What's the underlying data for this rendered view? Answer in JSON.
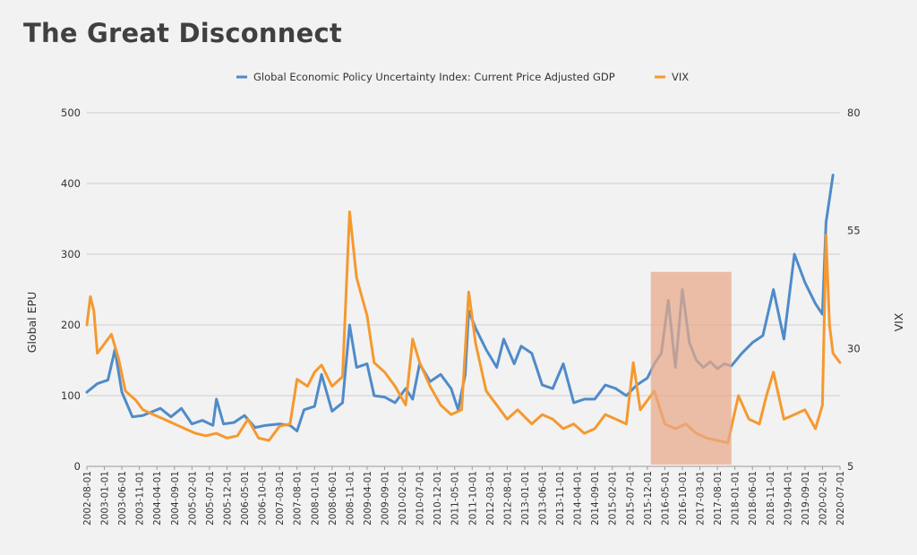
{
  "chart_data": {
    "type": "line",
    "title": "The Great Disconnect",
    "ylabel_left": "Global EPU",
    "ylabel_right": "VIX",
    "ylim_left": [
      0,
      500
    ],
    "ylim_right": [
      5,
      80
    ],
    "yticks_left": [
      "0",
      "100",
      "200",
      "300",
      "400",
      "500"
    ],
    "yticks_right": [
      "5",
      "30",
      "55",
      "80"
    ],
    "xlim": [
      "2002-08-01",
      "2020-07-01"
    ],
    "grid": true,
    "legend_position": "top",
    "x_tick_labels": [
      "2002-08-01",
      "2003-01-01",
      "2003-06-01",
      "2003-11-01",
      "2004-04-01",
      "2004-09-01",
      "2005-02-01",
      "2005-07-01",
      "2005-12-01",
      "2006-05-01",
      "2006-10-01",
      "2007-03-01",
      "2007-08-01",
      "2008-01-01",
      "2008-06-01",
      "2008-11-01",
      "2009-04-01",
      "2009-09-01",
      "2010-02-01",
      "2010-07-01",
      "2010-12-01",
      "2011-05-01",
      "2011-10-01",
      "2012-03-01",
      "2012-08-01",
      "2013-01-01",
      "2013-06-01",
      "2013-11-01",
      "2014-04-01",
      "2014-09-01",
      "2015-02-01",
      "2015-07-01",
      "2015-12-01",
      "2016-05-01",
      "2016-10-01",
      "2017-03-01",
      "2017-08-01",
      "2018-01-01",
      "2018-06-01",
      "2018-11-01",
      "2019-04-01",
      "2019-09-01",
      "2020-02-01",
      "2020-07-01"
    ],
    "highlight": {
      "x_start": "2016-01-01",
      "x_end": "2017-12-01",
      "y_left_top": 275,
      "color": "#e8a888"
    },
    "series": [
      {
        "name": "Global Economic Policy Uncertainty Index: Current Price Adjusted GDP",
        "axis": "left",
        "color": "#4f8bc9",
        "points": [
          [
            "2002-08-01",
            105
          ],
          [
            "2002-11-01",
            117
          ],
          [
            "2003-02-01",
            122
          ],
          [
            "2003-04-01",
            165
          ],
          [
            "2003-06-01",
            105
          ],
          [
            "2003-09-01",
            70
          ],
          [
            "2003-12-01",
            72
          ],
          [
            "2004-03-01",
            78
          ],
          [
            "2004-05-01",
            82
          ],
          [
            "2004-08-01",
            70
          ],
          [
            "2004-11-01",
            82
          ],
          [
            "2005-02-01",
            60
          ],
          [
            "2005-05-01",
            65
          ],
          [
            "2005-08-01",
            58
          ],
          [
            "2005-09-01",
            95
          ],
          [
            "2005-11-01",
            60
          ],
          [
            "2006-02-01",
            62
          ],
          [
            "2006-05-01",
            72
          ],
          [
            "2006-08-01",
            55
          ],
          [
            "2006-11-01",
            58
          ],
          [
            "2007-03-01",
            60
          ],
          [
            "2007-06-01",
            58
          ],
          [
            "2007-08-01",
            50
          ],
          [
            "2007-10-01",
            80
          ],
          [
            "2008-01-01",
            85
          ],
          [
            "2008-03-01",
            130
          ],
          [
            "2008-06-01",
            78
          ],
          [
            "2008-09-01",
            90
          ],
          [
            "2008-11-01",
            200
          ],
          [
            "2009-01-01",
            140
          ],
          [
            "2009-04-01",
            145
          ],
          [
            "2009-06-01",
            100
          ],
          [
            "2009-09-01",
            98
          ],
          [
            "2009-12-01",
            90
          ],
          [
            "2010-03-01",
            110
          ],
          [
            "2010-05-01",
            95
          ],
          [
            "2010-07-01",
            145
          ],
          [
            "2010-10-01",
            120
          ],
          [
            "2011-01-01",
            130
          ],
          [
            "2011-04-01",
            110
          ],
          [
            "2011-06-01",
            80
          ],
          [
            "2011-08-01",
            130
          ],
          [
            "2011-09-01",
            220
          ],
          [
            "2011-11-01",
            195
          ],
          [
            "2012-02-01",
            165
          ],
          [
            "2012-05-01",
            140
          ],
          [
            "2012-07-01",
            180
          ],
          [
            "2012-10-01",
            145
          ],
          [
            "2012-12-01",
            170
          ],
          [
            "2013-03-01",
            160
          ],
          [
            "2013-06-01",
            115
          ],
          [
            "2013-09-01",
            110
          ],
          [
            "2013-12-01",
            145
          ],
          [
            "2014-03-01",
            90
          ],
          [
            "2014-06-01",
            95
          ],
          [
            "2014-09-01",
            95
          ],
          [
            "2014-12-01",
            115
          ],
          [
            "2015-03-01",
            110
          ],
          [
            "2015-06-01",
            100
          ],
          [
            "2015-09-01",
            115
          ],
          [
            "2015-12-01",
            125
          ],
          [
            "2016-02-01",
            145
          ],
          [
            "2016-04-01",
            160
          ],
          [
            "2016-06-01",
            235
          ],
          [
            "2016-08-01",
            140
          ],
          [
            "2016-10-01",
            250
          ],
          [
            "2016-12-01",
            175
          ],
          [
            "2017-02-01",
            150
          ],
          [
            "2017-04-01",
            140
          ],
          [
            "2017-06-01",
            148
          ],
          [
            "2017-08-01",
            138
          ],
          [
            "2017-10-01",
            145
          ],
          [
            "2017-12-01",
            142
          ],
          [
            "2018-03-01",
            160
          ],
          [
            "2018-06-01",
            175
          ],
          [
            "2018-09-01",
            185
          ],
          [
            "2018-12-01",
            250
          ],
          [
            "2019-03-01",
            180
          ],
          [
            "2019-06-01",
            300
          ],
          [
            "2019-09-01",
            260
          ],
          [
            "2019-12-01",
            230
          ],
          [
            "2020-02-01",
            215
          ],
          [
            "2020-03-01",
            345
          ],
          [
            "2020-05-01",
            412
          ]
        ]
      },
      {
        "name": "VIX",
        "axis": "right",
        "color": "#f5992f",
        "points": [
          [
            "2002-08-01",
            35
          ],
          [
            "2002-09-01",
            41
          ],
          [
            "2002-10-01",
            38
          ],
          [
            "2002-11-01",
            29
          ],
          [
            "2003-01-01",
            31
          ],
          [
            "2003-03-01",
            33
          ],
          [
            "2003-05-01",
            28
          ],
          [
            "2003-07-01",
            21
          ],
          [
            "2003-10-01",
            19
          ],
          [
            "2003-12-01",
            17
          ],
          [
            "2004-03-01",
            16
          ],
          [
            "2004-06-01",
            15
          ],
          [
            "2004-09-01",
            14
          ],
          [
            "2004-12-01",
            13
          ],
          [
            "2005-03-01",
            12
          ],
          [
            "2005-06-01",
            11.5
          ],
          [
            "2005-09-01",
            12
          ],
          [
            "2005-12-01",
            11
          ],
          [
            "2006-03-01",
            11.5
          ],
          [
            "2006-06-01",
            15
          ],
          [
            "2006-09-01",
            11
          ],
          [
            "2006-12-01",
            10.5
          ],
          [
            "2007-03-01",
            13.5
          ],
          [
            "2007-06-01",
            14
          ],
          [
            "2007-08-01",
            23.5
          ],
          [
            "2007-11-01",
            22
          ],
          [
            "2008-01-01",
            25
          ],
          [
            "2008-03-01",
            26.5
          ],
          [
            "2008-06-01",
            22
          ],
          [
            "2008-09-01",
            24
          ],
          [
            "2008-11-01",
            59
          ],
          [
            "2009-01-01",
            45
          ],
          [
            "2009-04-01",
            37
          ],
          [
            "2009-06-01",
            27
          ],
          [
            "2009-09-01",
            25
          ],
          [
            "2009-12-01",
            22
          ],
          [
            "2010-03-01",
            18
          ],
          [
            "2010-05-01",
            32
          ],
          [
            "2010-07-01",
            27
          ],
          [
            "2010-10-01",
            22
          ],
          [
            "2011-01-01",
            18
          ],
          [
            "2011-04-01",
            16
          ],
          [
            "2011-07-01",
            17
          ],
          [
            "2011-09-01",
            42
          ],
          [
            "2011-11-01",
            31
          ],
          [
            "2012-02-01",
            21
          ],
          [
            "2012-05-01",
            18
          ],
          [
            "2012-08-01",
            15
          ],
          [
            "2012-11-01",
            17
          ],
          [
            "2013-03-01",
            14
          ],
          [
            "2013-06-01",
            16
          ],
          [
            "2013-09-01",
            15
          ],
          [
            "2013-12-01",
            13
          ],
          [
            "2014-03-01",
            14
          ],
          [
            "2014-06-01",
            12
          ],
          [
            "2014-09-01",
            13
          ],
          [
            "2014-12-01",
            16
          ],
          [
            "2015-03-01",
            15
          ],
          [
            "2015-06-01",
            14
          ],
          [
            "2015-08-01",
            27
          ],
          [
            "2015-10-01",
            17
          ],
          [
            "2015-12-01",
            19
          ],
          [
            "2016-02-01",
            21
          ],
          [
            "2016-05-01",
            14
          ],
          [
            "2016-08-01",
            13
          ],
          [
            "2016-11-01",
            14
          ],
          [
            "2017-02-01",
            12
          ],
          [
            "2017-05-01",
            11
          ],
          [
            "2017-08-01",
            10.5
          ],
          [
            "2017-11-01",
            10
          ],
          [
            "2018-02-01",
            20
          ],
          [
            "2018-05-01",
            15
          ],
          [
            "2018-08-01",
            14
          ],
          [
            "2018-10-01",
            20
          ],
          [
            "2018-12-01",
            25
          ],
          [
            "2019-03-01",
            15
          ],
          [
            "2019-06-01",
            16
          ],
          [
            "2019-09-01",
            17
          ],
          [
            "2019-12-01",
            13
          ],
          [
            "2020-02-01",
            18
          ],
          [
            "2020-03-01",
            54
          ],
          [
            "2020-04-01",
            35
          ],
          [
            "2020-05-01",
            29
          ],
          [
            "2020-07-01",
            27
          ]
        ]
      }
    ]
  }
}
